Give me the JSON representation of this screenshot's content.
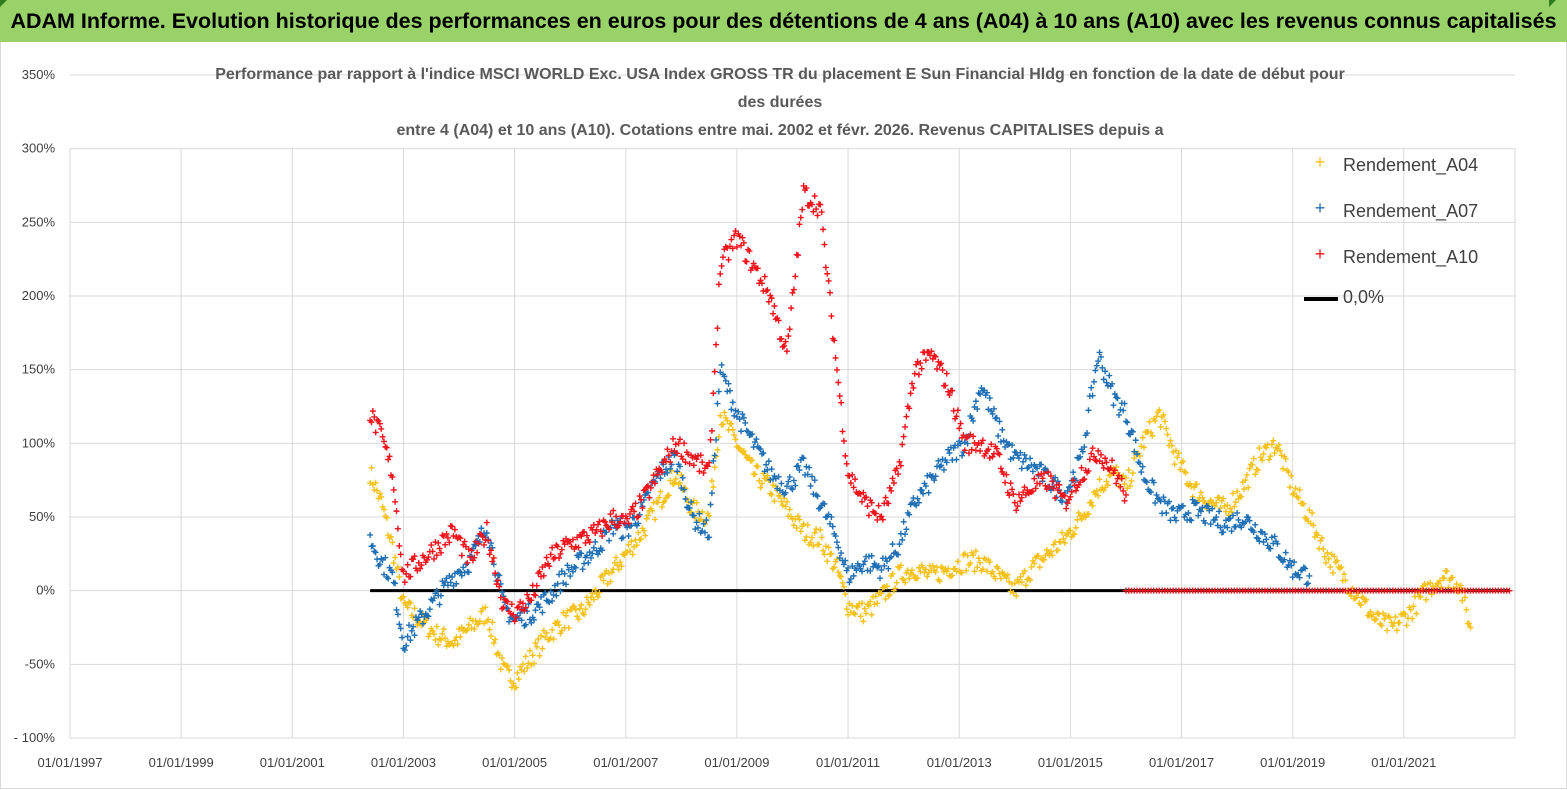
{
  "banner": {
    "title": "ADAM Informe. Evolution historique des performances en euros pour des détentions de 4 ans (A04) à 10 ans (A10) avec les revenus connus capitalisés"
  },
  "colors": {
    "banner_bg": "#9ad26a",
    "a04": "#f5c11a",
    "a07": "#1f6fb5",
    "a10": "#f0121a",
    "zero": "#000000",
    "grid": "#d9d9d9"
  },
  "chart_data": {
    "type": "scatter",
    "title_lines": [
      "Performance par rapport à l'indice MSCI WORLD Exc. USA Index GROSS TR  du placement E Sun Financial Hldg  en fonction de la date de début pour",
      "des durées",
      "entre 4 (A04) et 10 ans (A10). Cotations entre mai. 2002 et févr. 2026. Revenus CAPITALISES depuis a"
    ],
    "ylim": [
      -100,
      350
    ],
    "y_ticks": [
      -100,
      -50,
      0,
      50,
      100,
      150,
      200,
      250,
      300,
      350
    ],
    "y_tick_labels": [
      "- 100%",
      "-50%",
      "0%",
      "50%",
      "100%",
      "150%",
      "200%",
      "250%",
      "300%",
      "350%"
    ],
    "xlim": [
      1997.0,
      2023.0
    ],
    "x_ticks": [
      1997,
      1999,
      2001,
      2003,
      2005,
      2007,
      2009,
      2011,
      2013,
      2015,
      2017,
      2019,
      2021
    ],
    "x_tick_labels": [
      "01/01/1997",
      "01/01/1999",
      "01/01/2001",
      "01/01/2003",
      "01/01/2005",
      "01/01/2007",
      "01/01/2009",
      "01/01/2011",
      "01/01/2013",
      "01/01/2015",
      "01/01/2017",
      "01/01/2019",
      "01/01/2021"
    ],
    "legend": [
      "Rendement_A04",
      "Rendement_A07",
      "Rendement_A10",
      "0,0%"
    ],
    "legend_position": "top-right",
    "series": [
      {
        "name": "Rendement_A04",
        "color": "#f5c11a",
        "x": [
          2002.4,
          2002.6,
          2002.8,
          2003.0,
          2003.3,
          2003.6,
          2003.9,
          2004.2,
          2004.5,
          2004.8,
          2005.0,
          2005.3,
          2005.6,
          2005.9,
          2006.2,
          2006.5,
          2006.8,
          2007.0,
          2007.3,
          2007.6,
          2007.9,
          2008.2,
          2008.5,
          2008.7,
          2009.0,
          2009.3,
          2009.6,
          2009.9,
          2010.2,
          2010.5,
          2010.8,
          2011.0,
          2011.3,
          2011.6,
          2011.9,
          2012.2,
          2012.5,
          2012.8,
          2013.1,
          2013.4,
          2013.7,
          2014.0,
          2014.3,
          2014.6,
          2014.9,
          2015.2,
          2015.5,
          2015.8,
          2016.0,
          2016.3,
          2016.6,
          2016.9,
          2017.2,
          2017.5,
          2017.8,
          2018.1,
          2018.4,
          2018.7,
          2019.0,
          2019.3,
          2019.6,
          2019.9,
          2020.2,
          2020.5,
          2020.8,
          2021.1,
          2021.4,
          2021.7,
          2022.0,
          2022.2
        ],
        "y": [
          80,
          60,
          30,
          -10,
          -20,
          -30,
          -35,
          -25,
          -15,
          -55,
          -60,
          -45,
          -30,
          -20,
          -15,
          0,
          15,
          25,
          40,
          60,
          80,
          55,
          50,
          120,
          100,
          80,
          70,
          55,
          40,
          35,
          15,
          -10,
          -15,
          -5,
          10,
          15,
          10,
          15,
          20,
          20,
          10,
          0,
          15,
          25,
          35,
          50,
          70,
          80,
          70,
          100,
          120,
          90,
          70,
          60,
          55,
          70,
          90,
          100,
          70,
          50,
          25,
          10,
          -5,
          -20,
          -25,
          -15,
          0,
          10,
          5,
          -25
        ]
      },
      {
        "name": "Rendement_A07",
        "color": "#1f6fb5",
        "x": [
          2002.4,
          2002.6,
          2002.8,
          2003.0,
          2003.3,
          2003.6,
          2003.9,
          2004.2,
          2004.5,
          2004.8,
          2005.0,
          2005.3,
          2005.6,
          2005.9,
          2006.2,
          2006.5,
          2006.8,
          2007.0,
          2007.3,
          2007.6,
          2007.9,
          2008.2,
          2008.5,
          2008.7,
          2009.0,
          2009.3,
          2009.6,
          2009.9,
          2010.2,
          2010.5,
          2010.8,
          2011.0,
          2011.3,
          2011.6,
          2011.9,
          2012.2,
          2012.5,
          2012.8,
          2013.1,
          2013.4,
          2013.7,
          2014.0,
          2014.3,
          2014.6,
          2014.9,
          2015.2,
          2015.5,
          2015.8,
          2016.0,
          2016.3,
          2016.6,
          2016.9,
          2017.2,
          2017.5,
          2017.8,
          2018.1,
          2018.4,
          2018.7,
          2019.0,
          2019.3
        ],
        "y": [
          35,
          20,
          10,
          -35,
          -20,
          -5,
          10,
          20,
          45,
          -10,
          -20,
          -15,
          -5,
          10,
          20,
          30,
          45,
          40,
          55,
          80,
          90,
          50,
          40,
          150,
          120,
          100,
          80,
          70,
          85,
          60,
          35,
          10,
          20,
          15,
          30,
          60,
          75,
          90,
          100,
          140,
          110,
          90,
          85,
          75,
          65,
          90,
          160,
          130,
          120,
          80,
          60,
          50,
          55,
          50,
          45,
          50,
          40,
          30,
          15,
          10
        ]
      },
      {
        "name": "Rendement_A10",
        "color": "#f0121a",
        "x": [
          2002.4,
          2002.6,
          2002.8,
          2003.0,
          2003.3,
          2003.6,
          2003.9,
          2004.2,
          2004.5,
          2004.8,
          2005.0,
          2005.3,
          2005.6,
          2005.9,
          2006.2,
          2006.5,
          2006.8,
          2007.0,
          2007.3,
          2007.6,
          2007.9,
          2008.2,
          2008.5,
          2008.7,
          2009.0,
          2009.3,
          2009.6,
          2009.9,
          2010.2,
          2010.5,
          2010.8,
          2011.0,
          2011.3,
          2011.6,
          2011.9,
          2012.2,
          2012.5,
          2012.8,
          2013.1,
          2013.4,
          2013.7,
          2014.0,
          2014.3,
          2014.6,
          2014.9,
          2015.2,
          2015.5,
          2015.8,
          2016.0
        ],
        "y": [
          120,
          105,
          80,
          10,
          20,
          30,
          40,
          20,
          40,
          -10,
          -15,
          -5,
          20,
          30,
          35,
          40,
          50,
          45,
          60,
          80,
          100,
          90,
          80,
          220,
          240,
          220,
          200,
          160,
          270,
          260,
          150,
          80,
          60,
          50,
          80,
          150,
          160,
          140,
          100,
          100,
          90,
          60,
          70,
          75,
          60,
          80,
          95,
          80,
          65
        ]
      },
      {
        "name": "0,0%",
        "color": "#000000",
        "x": [
          2002.4,
          2022.9
        ],
        "y": [
          0,
          0
        ]
      }
    ],
    "zero_highlight": {
      "name": "Rendement_A10",
      "x_start": 2016.0,
      "x_end": 2022.9,
      "y": 0
    }
  }
}
